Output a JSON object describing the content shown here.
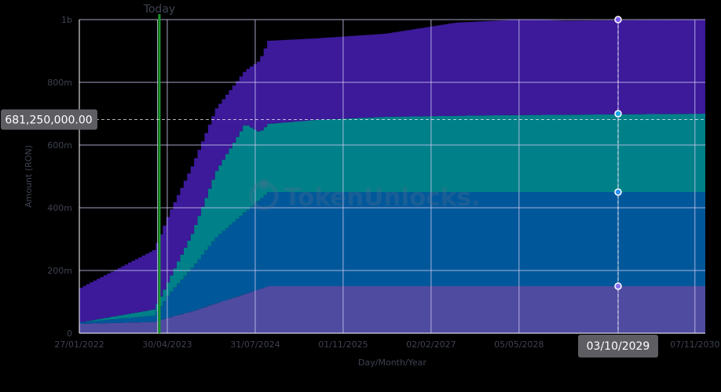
{
  "chart_data": {
    "type": "area",
    "stacked": true,
    "xlabel": "Day/Month/Year",
    "ylabel": "Amount (RON)",
    "x_ticks": [
      "27/01/2022",
      "30/04/2023",
      "31/07/2024",
      "01/11/2025",
      "02/02/2027",
      "05/05/2028",
      "07/11/2030"
    ],
    "y_ticks": [
      "0",
      "200m",
      "400m",
      "600m",
      "800m",
      "1b"
    ],
    "ylim": [
      0,
      1000000000
    ],
    "xlim": [
      "2022-01-27",
      "2030-12-31"
    ],
    "grid": true,
    "legend": "none",
    "series": [
      {
        "color": "#4f4ba0",
        "x": [
          "2022-01-27",
          "2023-02-15",
          "2023-05-01",
          "2023-09-01",
          "2024-01-01",
          "2024-06-01",
          "2024-10-01",
          "2030-12-31"
        ],
        "values": [
          30000000,
          36000000,
          50000000,
          70000000,
          95000000,
          125000000,
          150000000,
          150000000
        ]
      },
      {
        "color": "#00589a",
        "x": [
          "2022-01-27",
          "2023-02-15",
          "2023-05-01",
          "2023-09-01",
          "2024-01-01",
          "2024-06-01",
          "2024-10-01",
          "2030-12-31"
        ],
        "values": [
          5000000,
          20000000,
          75000000,
          140000000,
          210000000,
          262000000,
          300000000,
          300000000
        ]
      },
      {
        "color": "#008089",
        "x": [
          "2022-01-27",
          "2023-02-15",
          "2023-05-01",
          "2023-09-01",
          "2024-01-01",
          "2024-06-01",
          "2024-08-15",
          "2025-06-01",
          "2026-06-01",
          "2028-01-01",
          "2030-12-31"
        ],
        "values": [
          0,
          20000000,
          45000000,
          110000000,
          210000000,
          280000000,
          215000000,
          230000000,
          240000000,
          245000000,
          250000000
        ]
      },
      {
        "color": "#3c1a9a",
        "x": [
          "2022-01-27",
          "2023-02-15",
          "2023-05-01",
          "2023-09-01",
          "2024-01-01",
          "2024-06-01",
          "2024-10-01",
          "2025-06-01",
          "2026-06-01",
          "2027-06-01",
          "2028-06-01",
          "2029-01-01",
          "2030-12-31"
        ],
        "values": [
          110000000,
          190000000,
          210000000,
          215000000,
          200000000,
          170000000,
          265000000,
          260000000,
          265000000,
          297000000,
          305000000,
          300000000,
          300000000
        ]
      }
    ],
    "annotations": {
      "today_label": "Today",
      "today_date": "2023-03-20",
      "crosshair_value_label": "681,250,000.00",
      "crosshair_value": 681250000,
      "crosshair_date_label": "03/10/2029",
      "crosshair_date": "2029-10-03",
      "crosshair_points": [
        150000000,
        450000000,
        700000000,
        1000000000
      ],
      "watermark": "TokenUnlocks."
    }
  }
}
